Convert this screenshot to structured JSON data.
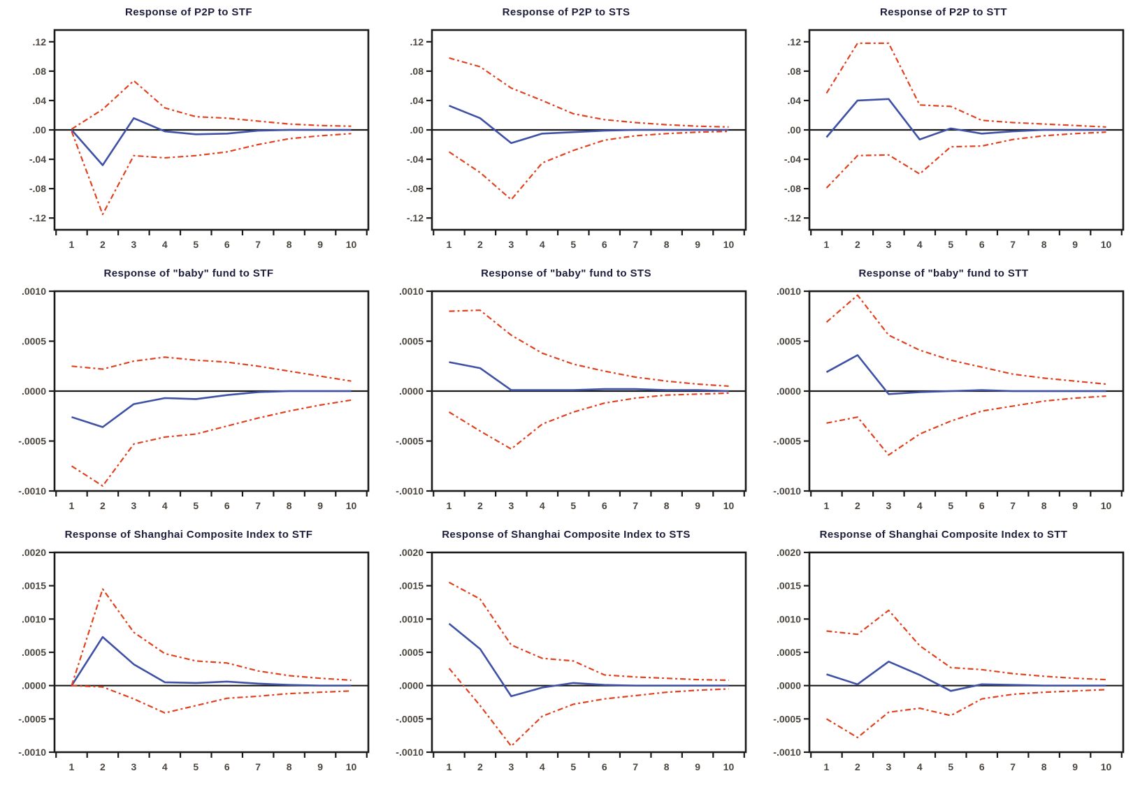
{
  "style": {
    "response_line_color": "#3f51a5",
    "band_line_color": "#e0421f",
    "axis_color": "#1a1a1a",
    "tick_label_color": "#4b453f",
    "title_color": "#1d1d3c",
    "background": "#ffffff"
  },
  "chart_data": [
    {
      "type": "line",
      "title": "Response of P2P to STF",
      "x": [
        1,
        2,
        3,
        4,
        5,
        6,
        7,
        8,
        9,
        10
      ],
      "xlabels": [
        "1",
        "2",
        "3",
        "4",
        "5",
        "6",
        "7",
        "8",
        "9",
        "10"
      ],
      "ylim": [
        -0.136,
        0.136
      ],
      "yticks": [
        0.12,
        0.08,
        0.04,
        0.0,
        -0.04,
        -0.08,
        -0.12
      ],
      "ytick_labels": [
        ".12",
        ".08",
        ".04",
        ".00",
        "-.04",
        "-.08",
        "-.12"
      ],
      "grid": false,
      "legend": "none",
      "series": [
        {
          "name": "response",
          "role": "response",
          "values": [
            0,
            -0.048,
            0.016,
            -0.002,
            -0.006,
            -0.005,
            -0.001,
            0,
            0,
            0
          ]
        },
        {
          "name": "upper_band",
          "role": "band",
          "values": [
            0.001,
            0.028,
            0.067,
            0.03,
            0.018,
            0.016,
            0.012,
            0.008,
            0.006,
            0.005
          ]
        },
        {
          "name": "lower_band",
          "role": "band",
          "values": [
            -0.002,
            -0.115,
            -0.035,
            -0.038,
            -0.035,
            -0.03,
            -0.02,
            -0.012,
            -0.008,
            -0.005
          ]
        }
      ]
    },
    {
      "type": "line",
      "title": "Response of P2P to STS",
      "x": [
        1,
        2,
        3,
        4,
        5,
        6,
        7,
        8,
        9,
        10
      ],
      "xlabels": [
        "1",
        "2",
        "3",
        "4",
        "5",
        "6",
        "7",
        "8",
        "9",
        "10"
      ],
      "ylim": [
        -0.136,
        0.136
      ],
      "yticks": [
        0.12,
        0.08,
        0.04,
        0.0,
        -0.04,
        -0.08,
        -0.12
      ],
      "ytick_labels": [
        ".12",
        ".08",
        ".04",
        ".00",
        "-.04",
        "-.08",
        "-.12"
      ],
      "grid": false,
      "legend": "none",
      "series": [
        {
          "name": "response",
          "role": "response",
          "values": [
            0.033,
            0.016,
            -0.018,
            -0.005,
            -0.003,
            -0.001,
            0,
            0,
            0,
            0
          ]
        },
        {
          "name": "upper_band",
          "role": "band",
          "values": [
            0.098,
            0.086,
            0.057,
            0.04,
            0.022,
            0.014,
            0.01,
            0.007,
            0.005,
            0.004
          ]
        },
        {
          "name": "lower_band",
          "role": "band",
          "values": [
            -0.03,
            -0.058,
            -0.095,
            -0.045,
            -0.028,
            -0.014,
            -0.008,
            -0.005,
            -0.003,
            -0.002
          ]
        }
      ]
    },
    {
      "type": "line",
      "title": "Response of P2P to STT",
      "x": [
        1,
        2,
        3,
        4,
        5,
        6,
        7,
        8,
        9,
        10
      ],
      "xlabels": [
        "1",
        "2",
        "3",
        "4",
        "5",
        "6",
        "7",
        "8",
        "9",
        "10"
      ],
      "ylim": [
        -0.136,
        0.136
      ],
      "yticks": [
        0.12,
        0.08,
        0.04,
        0.0,
        -0.04,
        -0.08,
        -0.12
      ],
      "ytick_labels": [
        ".12",
        ".08",
        ".04",
        ".00",
        "-.04",
        "-.08",
        "-.12"
      ],
      "grid": false,
      "legend": "none",
      "series": [
        {
          "name": "response",
          "role": "response",
          "values": [
            -0.01,
            0.04,
            0.042,
            -0.013,
            0.002,
            -0.005,
            -0.002,
            0,
            0,
            0
          ]
        },
        {
          "name": "upper_band",
          "role": "band",
          "values": [
            0.05,
            0.118,
            0.118,
            0.034,
            0.032,
            0.013,
            0.01,
            0.008,
            0.006,
            0.004
          ]
        },
        {
          "name": "lower_band",
          "role": "band",
          "values": [
            -0.079,
            -0.035,
            -0.034,
            -0.06,
            -0.023,
            -0.022,
            -0.013,
            -0.008,
            -0.005,
            -0.003
          ]
        }
      ]
    },
    {
      "type": "line",
      "title": "Response of \"baby\" fund to STF",
      "x": [
        1,
        2,
        3,
        4,
        5,
        6,
        7,
        8,
        9,
        10
      ],
      "xlabels": [
        "1",
        "2",
        "3",
        "4",
        "5",
        "6",
        "7",
        "8",
        "9",
        "10"
      ],
      "ylim": [
        -0.001,
        0.001
      ],
      "yticks": [
        0.001,
        0.0005,
        0.0,
        -0.0005,
        -0.001
      ],
      "ytick_labels": [
        ".0010",
        ".0005",
        ".0000",
        "-.0005",
        "-.0010"
      ],
      "grid": false,
      "legend": "none",
      "series": [
        {
          "name": "response",
          "role": "response",
          "values": [
            -0.00026,
            -0.00036,
            -0.00013,
            -7e-05,
            -8e-05,
            -4e-05,
            -1e-05,
            0,
            0,
            0
          ]
        },
        {
          "name": "upper_band",
          "role": "band",
          "values": [
            0.00025,
            0.00022,
            0.0003,
            0.00034,
            0.00031,
            0.00029,
            0.00025,
            0.0002,
            0.00015,
            0.0001
          ]
        },
        {
          "name": "lower_band",
          "role": "band",
          "values": [
            -0.00075,
            -0.00095,
            -0.00053,
            -0.00046,
            -0.00043,
            -0.00035,
            -0.00027,
            -0.0002,
            -0.00014,
            -9e-05
          ]
        }
      ]
    },
    {
      "type": "line",
      "title": "Response of \"baby\" fund to STS",
      "x": [
        1,
        2,
        3,
        4,
        5,
        6,
        7,
        8,
        9,
        10
      ],
      "xlabels": [
        "1",
        "2",
        "3",
        "4",
        "5",
        "6",
        "7",
        "8",
        "9",
        "10"
      ],
      "ylim": [
        -0.001,
        0.001
      ],
      "yticks": [
        0.001,
        0.0005,
        0.0,
        -0.0005,
        -0.001
      ],
      "ytick_labels": [
        ".0010",
        ".0005",
        ".0000",
        "-.0005",
        "-.0010"
      ],
      "grid": false,
      "legend": "none",
      "series": [
        {
          "name": "response",
          "role": "response",
          "values": [
            0.00029,
            0.00023,
            1e-05,
            1e-05,
            1e-05,
            2e-05,
            2e-05,
            1e-05,
            1e-05,
            0
          ]
        },
        {
          "name": "upper_band",
          "role": "band",
          "values": [
            0.0008,
            0.00081,
            0.00056,
            0.00038,
            0.00027,
            0.0002,
            0.00014,
            0.0001,
            7e-05,
            5e-05
          ]
        },
        {
          "name": "lower_band",
          "role": "band",
          "values": [
            -0.00021,
            -0.0004,
            -0.00058,
            -0.00033,
            -0.00021,
            -0.00012,
            -7e-05,
            -4e-05,
            -3e-05,
            -2e-05
          ]
        }
      ]
    },
    {
      "type": "line",
      "title": "Response of \"baby\" fund to STT",
      "x": [
        1,
        2,
        3,
        4,
        5,
        6,
        7,
        8,
        9,
        10
      ],
      "xlabels": [
        "1",
        "2",
        "3",
        "4",
        "5",
        "6",
        "7",
        "8",
        "9",
        "10"
      ],
      "ylim": [
        -0.001,
        0.001
      ],
      "yticks": [
        0.001,
        0.0005,
        0.0,
        -0.0005,
        -0.001
      ],
      "ytick_labels": [
        ".0010",
        ".0005",
        ".0000",
        "-.0005",
        "-.0010"
      ],
      "grid": false,
      "legend": "none",
      "series": [
        {
          "name": "response",
          "role": "response",
          "values": [
            0.00019,
            0.00036,
            -3e-05,
            -1e-05,
            0,
            1e-05,
            0,
            0,
            0,
            0
          ]
        },
        {
          "name": "upper_band",
          "role": "band",
          "values": [
            0.00069,
            0.00096,
            0.00056,
            0.00041,
            0.00031,
            0.00024,
            0.00017,
            0.00013,
            0.0001,
            7e-05
          ]
        },
        {
          "name": "lower_band",
          "role": "band",
          "values": [
            -0.00032,
            -0.00026,
            -0.00064,
            -0.00043,
            -0.0003,
            -0.0002,
            -0.00015,
            -0.0001,
            -7e-05,
            -5e-05
          ]
        }
      ]
    },
    {
      "type": "line",
      "title": "Response of Shanghai Composite Index to STF",
      "x": [
        1,
        2,
        3,
        4,
        5,
        6,
        7,
        8,
        9,
        10
      ],
      "xlabels": [
        "1",
        "2",
        "3",
        "4",
        "5",
        "6",
        "7",
        "8",
        "9",
        "10"
      ],
      "ylim": [
        -0.001,
        0.002
      ],
      "yticks": [
        0.002,
        0.0015,
        0.001,
        0.0005,
        0.0,
        -0.0005,
        -0.001
      ],
      "ytick_labels": [
        ".0020",
        ".0015",
        ".0010",
        ".0005",
        ".0000",
        "-.0005",
        "-.0010"
      ],
      "grid": false,
      "legend": "none",
      "series": [
        {
          "name": "response",
          "role": "response",
          "values": [
            0,
            0.00073,
            0.00032,
            5e-05,
            4e-05,
            6e-05,
            3e-05,
            1e-05,
            0,
            0
          ]
        },
        {
          "name": "upper_band",
          "role": "band",
          "values": [
            0,
            0.00145,
            0.0008,
            0.00048,
            0.00037,
            0.00034,
            0.00022,
            0.00015,
            0.00011,
            8e-05
          ]
        },
        {
          "name": "lower_band",
          "role": "band",
          "values": [
            0,
            -2e-05,
            -0.0002,
            -0.00041,
            -0.0003,
            -0.00019,
            -0.00016,
            -0.00012,
            -0.0001,
            -8e-05
          ]
        }
      ]
    },
    {
      "type": "line",
      "title": "Response of Shanghai Composite Index to STS",
      "x": [
        1,
        2,
        3,
        4,
        5,
        6,
        7,
        8,
        9,
        10
      ],
      "xlabels": [
        "1",
        "2",
        "3",
        "4",
        "5",
        "6",
        "7",
        "8",
        "9",
        "10"
      ],
      "ylim": [
        -0.001,
        0.002
      ],
      "yticks": [
        0.002,
        0.0015,
        0.001,
        0.0005,
        0.0,
        -0.0005,
        -0.001
      ],
      "ytick_labels": [
        ".0020",
        ".0015",
        ".0010",
        ".0005",
        ".0000",
        "-.0005",
        "-.0010"
      ],
      "grid": false,
      "legend": "none",
      "series": [
        {
          "name": "response",
          "role": "response",
          "values": [
            0.00093,
            0.00055,
            -0.00016,
            -3e-05,
            4e-05,
            1e-05,
            0,
            0,
            0,
            0
          ]
        },
        {
          "name": "upper_band",
          "role": "band",
          "values": [
            0.00155,
            0.0013,
            0.00061,
            0.00041,
            0.00037,
            0.00016,
            0.00013,
            0.00011,
            9e-05,
            8e-05
          ]
        },
        {
          "name": "lower_band",
          "role": "band",
          "values": [
            0.00026,
            -0.0003,
            -0.00091,
            -0.00046,
            -0.00028,
            -0.0002,
            -0.00015,
            -0.0001,
            -7e-05,
            -5e-05
          ]
        }
      ]
    },
    {
      "type": "line",
      "title": "Response of Shanghai Composite Index to STT",
      "x": [
        1,
        2,
        3,
        4,
        5,
        6,
        7,
        8,
        9,
        10
      ],
      "xlabels": [
        "1",
        "2",
        "3",
        "4",
        "5",
        "6",
        "7",
        "8",
        "9",
        "10"
      ],
      "ylim": [
        -0.001,
        0.002
      ],
      "yticks": [
        0.002,
        0.0015,
        0.001,
        0.0005,
        0.0,
        -0.0005,
        -0.001
      ],
      "ytick_labels": [
        ".0020",
        ".0015",
        ".0010",
        ".0005",
        ".0000",
        "-.0005",
        "-.0010"
      ],
      "grid": false,
      "legend": "none",
      "series": [
        {
          "name": "response",
          "role": "response",
          "values": [
            0.00017,
            2e-05,
            0.00036,
            0.00016,
            -8e-05,
            2e-05,
            1e-05,
            0,
            0,
            0
          ]
        },
        {
          "name": "upper_band",
          "role": "band",
          "values": [
            0.00082,
            0.00077,
            0.00113,
            0.0006,
            0.00027,
            0.00024,
            0.00018,
            0.00014,
            0.00011,
            9e-05
          ]
        },
        {
          "name": "lower_band",
          "role": "band",
          "values": [
            -0.0005,
            -0.00078,
            -0.0004,
            -0.00034,
            -0.00045,
            -0.0002,
            -0.00013,
            -0.0001,
            -8e-05,
            -6e-05
          ]
        }
      ]
    }
  ]
}
